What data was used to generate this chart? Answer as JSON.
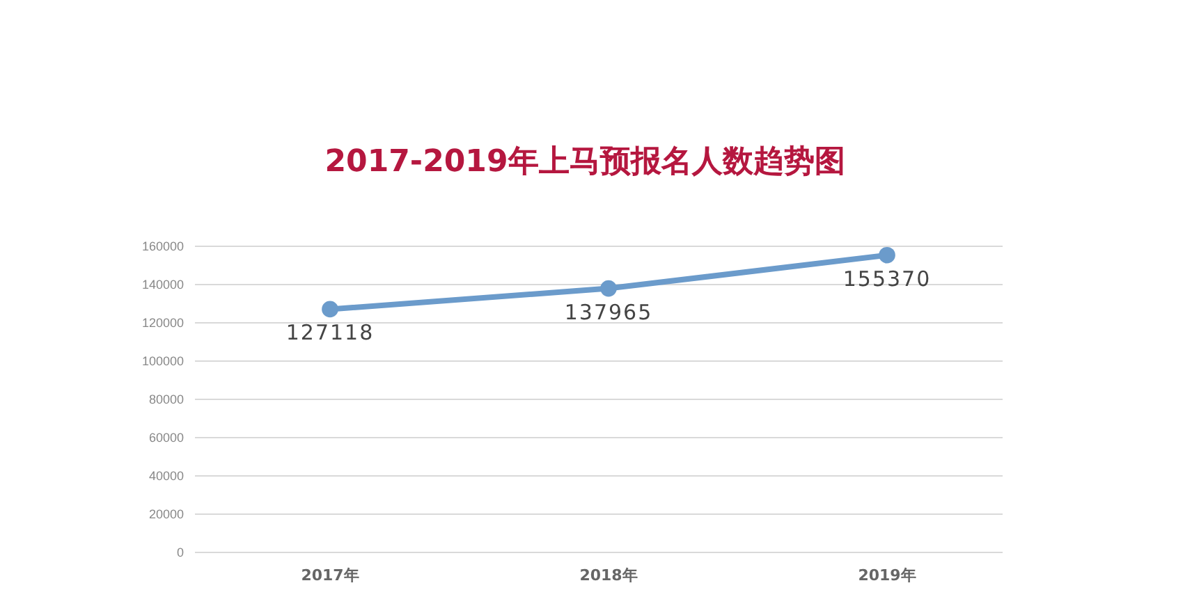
{
  "chart_data": {
    "type": "line",
    "title": "2017-2019年上马预报名人数趋势图",
    "categories": [
      "2017年",
      "2018年",
      "2019年"
    ],
    "series": [
      {
        "color": "#6b9bcb",
        "values": [
          127118,
          137965,
          155370
        ]
      }
    ],
    "ylim": [
      0,
      160000
    ],
    "yticks": [
      0,
      20000,
      40000,
      60000,
      80000,
      100000,
      120000,
      140000,
      160000
    ],
    "grid": "y",
    "marker": "circle",
    "data_labels": true
  }
}
